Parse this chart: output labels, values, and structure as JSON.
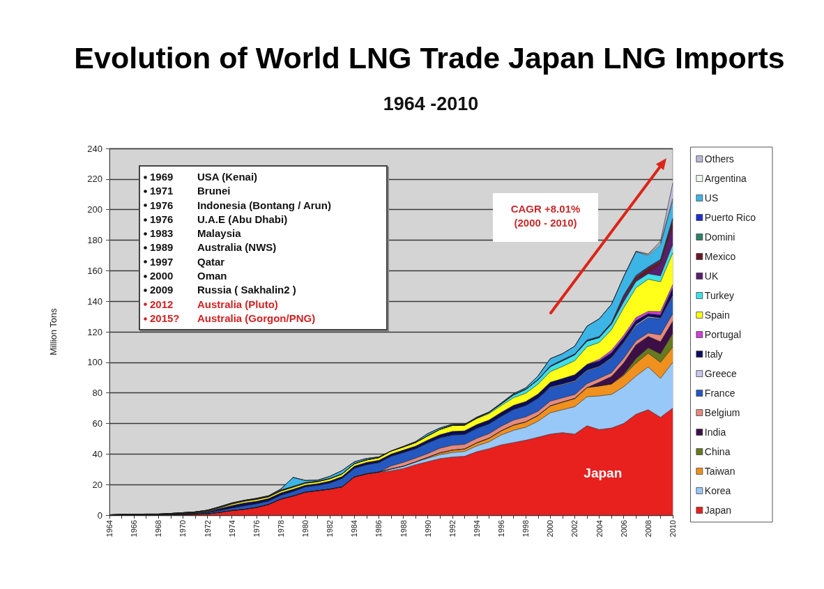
{
  "chart_data": {
    "type": "area",
    "stacked": true,
    "title": "Evolution of World LNG Trade Japan LNG Imports",
    "subtitle": "1964 -2010",
    "ylabel": "Million Tons",
    "categories": [
      "1964",
      null,
      "1966",
      null,
      "1968",
      null,
      "1970",
      null,
      "1972",
      null,
      "1974",
      null,
      "1976",
      null,
      "1978",
      null,
      "1980",
      null,
      "1982",
      null,
      "1984",
      null,
      "1986",
      null,
      "1988",
      null,
      "1990",
      null,
      "1992",
      null,
      "1994",
      null,
      "1996",
      null,
      "1998",
      null,
      "2000",
      null,
      "2002",
      null,
      "2004",
      null,
      "2006",
      null,
      "2008",
      null,
      "2010"
    ],
    "series": [
      {
        "name": "Japan",
        "color": "#e8201e",
        "values": [
          0,
          0,
          0,
          0,
          0,
          0.2,
          0.5,
          0.6,
          0.8,
          1.8,
          3,
          3.8,
          5,
          7,
          10.5,
          12.5,
          15,
          16,
          17,
          18.5,
          25,
          27,
          28,
          29,
          30.5,
          33,
          35,
          37,
          38,
          38.5,
          41.5,
          43.5,
          46,
          47.5,
          49,
          51,
          53,
          54,
          53,
          58.5,
          56,
          57,
          60,
          66,
          69,
          64,
          70
        ]
      },
      {
        "name": "Korea",
        "color": "#98c8f8",
        "values": [
          0,
          0,
          0,
          0,
          0,
          0,
          0,
          0,
          0,
          0,
          0,
          0,
          0,
          0,
          0,
          0,
          0,
          0,
          0,
          0,
          0,
          0,
          0.2,
          1.2,
          1.5,
          1.8,
          2.2,
          2.6,
          3,
          3.2,
          3.8,
          4.5,
          6.5,
          8,
          8.5,
          10.5,
          14,
          15,
          18,
          19,
          22,
          22,
          24,
          25,
          28,
          25.5,
          30
        ]
      },
      {
        "name": "Taiwan",
        "color": "#f0901e",
        "values": [
          0,
          0,
          0,
          0,
          0,
          0,
          0,
          0,
          0,
          0,
          0,
          0,
          0,
          0,
          0,
          0,
          0,
          0,
          0,
          0,
          0,
          0,
          0,
          0,
          0,
          0,
          0.6,
          1.2,
          1.5,
          1.6,
          2,
          2.3,
          2.7,
          3.4,
          3.5,
          3.7,
          4.5,
          5,
          5.3,
          6,
          6.5,
          6.8,
          7.5,
          8.5,
          9,
          10.5,
          10
        ]
      },
      {
        "name": "China",
        "color": "#667a1f",
        "values": [
          0,
          0,
          0,
          0,
          0,
          0,
          0,
          0,
          0,
          0,
          0,
          0,
          0,
          0,
          0,
          0,
          0,
          0,
          0,
          0,
          0,
          0,
          0,
          0,
          0,
          0,
          0,
          0,
          0,
          0,
          0,
          0,
          0,
          0,
          0,
          0,
          0,
          0,
          0,
          0,
          0,
          0,
          0.7,
          3,
          3.5,
          5.5,
          9
        ]
      },
      {
        "name": "India",
        "color": "#3c0f46",
        "values": [
          0,
          0,
          0,
          0,
          0,
          0,
          0,
          0,
          0,
          0,
          0,
          0,
          0,
          0,
          0,
          0,
          0,
          0,
          0,
          0,
          0,
          0,
          0,
          0,
          0,
          0,
          0,
          0,
          0,
          0,
          0,
          0,
          0,
          0,
          0,
          0,
          0,
          0,
          0,
          0,
          2.5,
          5,
          7.5,
          9,
          7.5,
          8,
          8
        ]
      },
      {
        "name": "Belgium",
        "color": "#e68a7e",
        "values": [
          0,
          0,
          0,
          0,
          0,
          0,
          0,
          0,
          0,
          0,
          0,
          0,
          0,
          0,
          0,
          0,
          0,
          0,
          0,
          0,
          0,
          0,
          0,
          2,
          2.5,
          2.5,
          2.5,
          3,
          3.2,
          3,
          3,
          3,
          3,
          3.3,
          3.3,
          2.8,
          3.1,
          2.8,
          2.6,
          2.5,
          2.5,
          2.4,
          3,
          2.5,
          2.2,
          4.5,
          4.8
        ]
      },
      {
        "name": "France",
        "color": "#2458c0",
        "values": [
          0,
          0.1,
          0.2,
          0.3,
          0.3,
          0.3,
          0.4,
          0.5,
          0.8,
          1.2,
          1.6,
          2.3,
          2.4,
          2.2,
          2.5,
          3,
          3.5,
          3.5,
          4,
          5.5,
          5.7,
          6,
          6.2,
          6.3,
          6.5,
          6.2,
          7,
          6.8,
          6.8,
          6.5,
          6.5,
          6.5,
          6.5,
          7,
          7.5,
          8.5,
          8.8,
          8.5,
          8.5,
          8.5,
          7.5,
          9.5,
          10,
          10,
          10,
          10.5,
          11
        ]
      },
      {
        "name": "Greece",
        "color": "#c8c4ec",
        "values": [
          0,
          0,
          0,
          0,
          0,
          0,
          0,
          0,
          0,
          0,
          0,
          0,
          0,
          0,
          0,
          0,
          0,
          0,
          0,
          0,
          0,
          0,
          0,
          0,
          0,
          0,
          0,
          0,
          0,
          0,
          0,
          0,
          0,
          0,
          0,
          0,
          0.4,
          0.5,
          0.5,
          0.4,
          0.4,
          0.4,
          0.4,
          0.8,
          0.8,
          0.5,
          0.9
        ]
      },
      {
        "name": "Italy",
        "color": "#0c0c5c",
        "values": [
          0,
          0,
          0,
          0,
          0,
          0,
          0,
          0.2,
          0.6,
          1.2,
          1.6,
          1.8,
          1.6,
          1.6,
          1.5,
          1.4,
          1,
          1,
          1.2,
          1.2,
          1.3,
          1.4,
          1.4,
          1.4,
          1.5,
          1.6,
          1.8,
          2,
          2.2,
          2.3,
          2.4,
          2.4,
          2.5,
          2.6,
          2.5,
          2.7,
          3.1,
          3.5,
          3.9,
          3.6,
          3.5,
          3.2,
          3,
          2.6,
          1.9,
          2.1,
          5
        ]
      },
      {
        "name": "Portugal",
        "color": "#cc40d8",
        "values": [
          0,
          0,
          0,
          0,
          0,
          0,
          0,
          0,
          0,
          0,
          0,
          0,
          0,
          0,
          0,
          0,
          0,
          0,
          0,
          0,
          0,
          0,
          0,
          0,
          0,
          0,
          0,
          0,
          0,
          0,
          0,
          0,
          0,
          0,
          0,
          0,
          0,
          0,
          0,
          0.2,
          1.1,
          1.6,
          1.6,
          1.9,
          1.5,
          2.1,
          2.2
        ]
      },
      {
        "name": "Spain",
        "color": "#ffff1a",
        "values": [
          0,
          0,
          0,
          0,
          0,
          0.1,
          0.2,
          0.3,
          0.4,
          0.6,
          1,
          1.1,
          1.2,
          1.1,
          1.2,
          1.3,
          1.3,
          1.3,
          1.5,
          1.7,
          1.6,
          1.7,
          1.8,
          2,
          2.1,
          2.4,
          2.8,
          3.5,
          4,
          3.8,
          4,
          4.2,
          4.5,
          5,
          5.5,
          6.5,
          7,
          8,
          9.3,
          11.5,
          11,
          13.5,
          18,
          19.5,
          21,
          19.5,
          20.7
        ]
      },
      {
        "name": "Turkey",
        "color": "#3fe0e8",
        "values": [
          0,
          0,
          0,
          0,
          0,
          0,
          0,
          0,
          0,
          0,
          0,
          0,
          0,
          0,
          0,
          0,
          0,
          0,
          0,
          0,
          0,
          0,
          0,
          0,
          0,
          0,
          0,
          0,
          0,
          0,
          0.3,
          0.8,
          1.2,
          1.9,
          2.5,
          2.9,
          3.3,
          3.8,
          3.9,
          3.7,
          3.2,
          3.5,
          4,
          4.1,
          3.6,
          3.9,
          5.5
        ]
      },
      {
        "name": "UK",
        "color": "#5a1e6e",
        "values": [
          0.2,
          0.4,
          0.4,
          0.4,
          0.4,
          0.5,
          0.5,
          0.5,
          0.6,
          0.6,
          0.6,
          0.6,
          0.6,
          0.6,
          0.6,
          0.5,
          0.4,
          0.3,
          0.2,
          0,
          0,
          0,
          0,
          0,
          0,
          0,
          0,
          0,
          0,
          0,
          0,
          0,
          0,
          0,
          0,
          0,
          0,
          0,
          0,
          0,
          0,
          0.4,
          2.6,
          1.1,
          0.8,
          7.5,
          11.6
        ]
      },
      {
        "name": "Mexico",
        "color": "#6b1626",
        "values": [
          0,
          0,
          0,
          0,
          0,
          0,
          0,
          0,
          0,
          0,
          0,
          0,
          0,
          0,
          0,
          0,
          0,
          0,
          0,
          0,
          0,
          0,
          0,
          0,
          0,
          0,
          0,
          0,
          0,
          0,
          0,
          0,
          0,
          0,
          0,
          0,
          0,
          0,
          0,
          0,
          0,
          0,
          0.7,
          1.7,
          2.7,
          2.2,
          4.2
        ]
      },
      {
        "name": "Domini",
        "color": "#2f7f66",
        "values": [
          0,
          0,
          0,
          0,
          0,
          0,
          0,
          0,
          0,
          0,
          0,
          0,
          0,
          0,
          0,
          0,
          0,
          0,
          0,
          0,
          0,
          0,
          0,
          0,
          0,
          0,
          0,
          0,
          0,
          0,
          0,
          0,
          0,
          0,
          0,
          0,
          0,
          0,
          0,
          0.2,
          0.2,
          0.2,
          0.5,
          0.6,
          0.4,
          0.5,
          0.8
        ]
      },
      {
        "name": "Puerto Rico",
        "color": "#1f2fc8",
        "values": [
          0,
          0,
          0,
          0,
          0,
          0,
          0,
          0,
          0,
          0,
          0,
          0,
          0,
          0,
          0,
          0,
          0,
          0,
          0,
          0,
          0,
          0,
          0,
          0,
          0,
          0,
          0,
          0,
          0,
          0,
          0,
          0,
          0,
          0,
          0,
          0,
          0.5,
          0.6,
          0.6,
          0.6,
          0.6,
          0.5,
          0.6,
          0.6,
          0.6,
          0.6,
          0.7
        ]
      },
      {
        "name": "US",
        "color": "#3cb4e6",
        "values": [
          0,
          0,
          0,
          0,
          0,
          0,
          0,
          0,
          0,
          0.1,
          0.2,
          0.1,
          0.2,
          0.2,
          0.8,
          6,
          1.5,
          0.8,
          1.5,
          2.3,
          1.3,
          1,
          0.5,
          0.1,
          0.4,
          0.6,
          1.5,
          1,
          0.8,
          0.5,
          0.6,
          0.3,
          0.5,
          0.8,
          1,
          2.5,
          4.7,
          4,
          5,
          9,
          11.5,
          12,
          12,
          15.5,
          7.4,
          9.5,
          11.5
        ]
      },
      {
        "name": "Argentina",
        "color": "#eef8ee",
        "values": [
          0,
          0,
          0,
          0,
          0,
          0,
          0,
          0,
          0,
          0,
          0,
          0,
          0,
          0,
          0,
          0,
          0,
          0,
          0,
          0,
          0,
          0,
          0,
          0,
          0,
          0,
          0,
          0,
          0,
          0,
          0,
          0,
          0,
          0,
          0,
          0,
          0,
          0,
          0,
          0,
          0,
          0,
          0,
          0,
          0.6,
          1,
          1.3
        ]
      },
      {
        "name": "Others",
        "color": "#b8b8d8",
        "values": [
          0,
          0,
          0,
          0,
          0,
          0,
          0,
          0,
          0,
          0,
          0,
          0,
          0,
          0,
          0,
          0,
          0,
          0,
          0,
          0,
          0,
          0,
          0,
          0,
          0,
          0,
          0,
          0,
          0,
          0,
          0,
          0,
          0,
          0,
          0,
          0,
          0,
          0,
          0,
          0,
          0,
          0,
          0.3,
          0.5,
          0.5,
          1.5,
          10
        ]
      }
    ],
    "ylim": [
      0,
      240
    ],
    "yticks": [
      0,
      20,
      40,
      60,
      80,
      100,
      120,
      140,
      160,
      180,
      200,
      220,
      240
    ],
    "grid": "y",
    "legend": "right",
    "annotations": [
      "1969 USA (Kenai)",
      "1971 Brunei",
      "1976 Indonesia (Bontang / Arun)",
      "1976 U.A.E (Abu Dhabi)",
      "1983 Malaysia",
      "1989 Australia (NWS)",
      "1997 Qatar",
      "2000 Oman",
      "2009 Russia ( Sakhalin2 )",
      "2012 Australia (Pluto)",
      "2015? Australia (Gorgon/PNG)",
      "CAGR +8.01%\n(2000 - 2010)"
    ]
  }
}
